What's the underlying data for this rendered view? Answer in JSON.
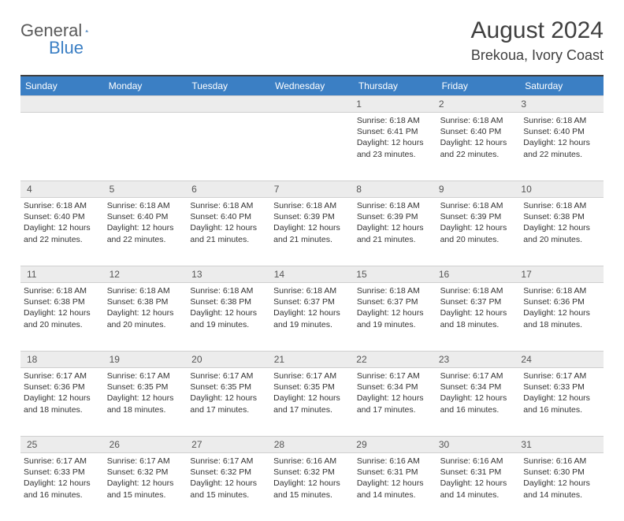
{
  "brand": {
    "part1": "General",
    "part2": "Blue"
  },
  "title": "August 2024",
  "location": "Brekoua, Ivory Coast",
  "colors": {
    "header_bg": "#3b7fc4",
    "header_text": "#ffffff",
    "daynum_bg": "#ececec",
    "border": "#cfcfcf",
    "top_rule": "#404040",
    "text": "#333333",
    "logo_gray": "#5a5a5a"
  },
  "day_labels": [
    "Sunday",
    "Monday",
    "Tuesday",
    "Wednesday",
    "Thursday",
    "Friday",
    "Saturday"
  ],
  "weeks": [
    [
      null,
      null,
      null,
      null,
      {
        "n": "1",
        "sunrise": "6:18 AM",
        "sunset": "6:41 PM",
        "daylight": "12 hours and 23 minutes."
      },
      {
        "n": "2",
        "sunrise": "6:18 AM",
        "sunset": "6:40 PM",
        "daylight": "12 hours and 22 minutes."
      },
      {
        "n": "3",
        "sunrise": "6:18 AM",
        "sunset": "6:40 PM",
        "daylight": "12 hours and 22 minutes."
      }
    ],
    [
      {
        "n": "4",
        "sunrise": "6:18 AM",
        "sunset": "6:40 PM",
        "daylight": "12 hours and 22 minutes."
      },
      {
        "n": "5",
        "sunrise": "6:18 AM",
        "sunset": "6:40 PM",
        "daylight": "12 hours and 22 minutes."
      },
      {
        "n": "6",
        "sunrise": "6:18 AM",
        "sunset": "6:40 PM",
        "daylight": "12 hours and 21 minutes."
      },
      {
        "n": "7",
        "sunrise": "6:18 AM",
        "sunset": "6:39 PM",
        "daylight": "12 hours and 21 minutes."
      },
      {
        "n": "8",
        "sunrise": "6:18 AM",
        "sunset": "6:39 PM",
        "daylight": "12 hours and 21 minutes."
      },
      {
        "n": "9",
        "sunrise": "6:18 AM",
        "sunset": "6:39 PM",
        "daylight": "12 hours and 20 minutes."
      },
      {
        "n": "10",
        "sunrise": "6:18 AM",
        "sunset": "6:38 PM",
        "daylight": "12 hours and 20 minutes."
      }
    ],
    [
      {
        "n": "11",
        "sunrise": "6:18 AM",
        "sunset": "6:38 PM",
        "daylight": "12 hours and 20 minutes."
      },
      {
        "n": "12",
        "sunrise": "6:18 AM",
        "sunset": "6:38 PM",
        "daylight": "12 hours and 20 minutes."
      },
      {
        "n": "13",
        "sunrise": "6:18 AM",
        "sunset": "6:38 PM",
        "daylight": "12 hours and 19 minutes."
      },
      {
        "n": "14",
        "sunrise": "6:18 AM",
        "sunset": "6:37 PM",
        "daylight": "12 hours and 19 minutes."
      },
      {
        "n": "15",
        "sunrise": "6:18 AM",
        "sunset": "6:37 PM",
        "daylight": "12 hours and 19 minutes."
      },
      {
        "n": "16",
        "sunrise": "6:18 AM",
        "sunset": "6:37 PM",
        "daylight": "12 hours and 18 minutes."
      },
      {
        "n": "17",
        "sunrise": "6:18 AM",
        "sunset": "6:36 PM",
        "daylight": "12 hours and 18 minutes."
      }
    ],
    [
      {
        "n": "18",
        "sunrise": "6:17 AM",
        "sunset": "6:36 PM",
        "daylight": "12 hours and 18 minutes."
      },
      {
        "n": "19",
        "sunrise": "6:17 AM",
        "sunset": "6:35 PM",
        "daylight": "12 hours and 18 minutes."
      },
      {
        "n": "20",
        "sunrise": "6:17 AM",
        "sunset": "6:35 PM",
        "daylight": "12 hours and 17 minutes."
      },
      {
        "n": "21",
        "sunrise": "6:17 AM",
        "sunset": "6:35 PM",
        "daylight": "12 hours and 17 minutes."
      },
      {
        "n": "22",
        "sunrise": "6:17 AM",
        "sunset": "6:34 PM",
        "daylight": "12 hours and 17 minutes."
      },
      {
        "n": "23",
        "sunrise": "6:17 AM",
        "sunset": "6:34 PM",
        "daylight": "12 hours and 16 minutes."
      },
      {
        "n": "24",
        "sunrise": "6:17 AM",
        "sunset": "6:33 PM",
        "daylight": "12 hours and 16 minutes."
      }
    ],
    [
      {
        "n": "25",
        "sunrise": "6:17 AM",
        "sunset": "6:33 PM",
        "daylight": "12 hours and 16 minutes."
      },
      {
        "n": "26",
        "sunrise": "6:17 AM",
        "sunset": "6:32 PM",
        "daylight": "12 hours and 15 minutes."
      },
      {
        "n": "27",
        "sunrise": "6:17 AM",
        "sunset": "6:32 PM",
        "daylight": "12 hours and 15 minutes."
      },
      {
        "n": "28",
        "sunrise": "6:16 AM",
        "sunset": "6:32 PM",
        "daylight": "12 hours and 15 minutes."
      },
      {
        "n": "29",
        "sunrise": "6:16 AM",
        "sunset": "6:31 PM",
        "daylight": "12 hours and 14 minutes."
      },
      {
        "n": "30",
        "sunrise": "6:16 AM",
        "sunset": "6:31 PM",
        "daylight": "12 hours and 14 minutes."
      },
      {
        "n": "31",
        "sunrise": "6:16 AM",
        "sunset": "6:30 PM",
        "daylight": "12 hours and 14 minutes."
      }
    ]
  ],
  "labels": {
    "sunrise": "Sunrise:",
    "sunset": "Sunset:",
    "daylight": "Daylight:"
  }
}
